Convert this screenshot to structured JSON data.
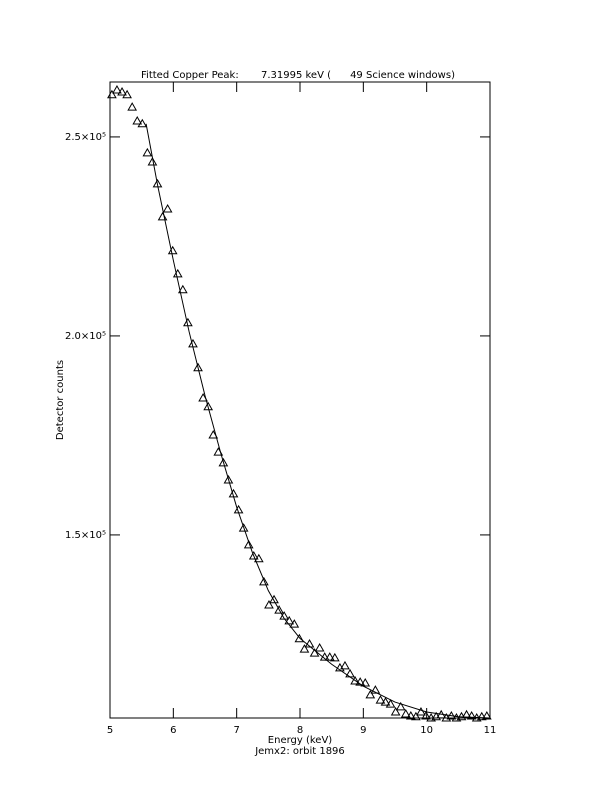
{
  "chart_data": {
    "type": "scatter",
    "title": "Fitted Copper Peak:       7.31995 keV (      49 Science windows)",
    "xlabel": "Energy (keV)",
    "subtitle": "Jemx2: orbit 1896",
    "ylabel": "Detector counts",
    "xlim": [
      5,
      11
    ],
    "xticks": [
      5,
      6,
      7,
      8,
      9,
      10,
      11
    ],
    "ylim": [
      104000,
      263800
    ],
    "yticks": [
      {
        "value": 150000,
        "label": "1.5×10⁵"
      },
      {
        "value": 200000,
        "label": "2.0×10⁵"
      },
      {
        "value": 250000,
        "label": "2.5×10⁵"
      }
    ],
    "series": [
      {
        "color": "#000000",
        "marker": "triangle",
        "x": [
          5.03,
          5.11,
          5.19,
          5.27,
          5.35,
          5.43,
          5.51,
          5.59,
          5.67,
          5.75,
          5.83,
          5.91,
          5.99,
          6.07,
          6.15,
          6.23,
          6.31,
          6.39,
          6.47,
          6.55,
          6.63,
          6.71,
          6.79,
          6.87,
          6.95,
          7.03,
          7.11,
          7.19,
          7.27,
          7.35,
          7.43,
          7.51,
          7.59,
          7.67,
          7.75,
          7.83,
          7.91,
          7.99,
          8.07,
          8.15,
          8.23,
          8.31,
          8.39,
          8.47,
          8.55,
          8.63,
          8.71,
          8.79,
          8.87,
          8.95,
          9.03,
          9.11,
          9.19,
          9.27,
          9.35,
          9.43,
          9.51,
          9.59,
          9.67,
          9.75,
          9.83,
          9.91,
          9.99,
          10.07,
          10.15,
          10.23,
          10.31,
          10.39,
          10.47,
          10.55,
          10.63,
          10.71,
          10.79,
          10.87,
          10.95
        ],
        "values": [
          260600,
          261800,
          261300,
          260600,
          257500,
          254000,
          253300,
          246000,
          243700,
          238200,
          229900,
          231900,
          221400,
          215600,
          211600,
          203300,
          198000,
          192000,
          184400,
          182200,
          175100,
          170800,
          168100,
          163800,
          160300,
          156300,
          151700,
          147500,
          144700,
          144000,
          138200,
          132400,
          133700,
          131100,
          129600,
          128400,
          127600,
          123900,
          121300,
          122600,
          120300,
          121600,
          119300,
          119300,
          119100,
          116600,
          117100,
          115100,
          113300,
          113000,
          112800,
          109800,
          111000,
          108500,
          108000,
          107500,
          105500,
          106800,
          105000,
          104500,
          104300,
          105500,
          104500,
          104000,
          104300,
          104800,
          104000,
          104500,
          104000,
          104300,
          104800,
          104500,
          104000,
          104300,
          104500
        ]
      },
      {
        "color": "#000000",
        "marker": "line",
        "x": [
          5.57,
          5.75,
          6.0,
          6.25,
          6.5,
          6.75,
          7.0,
          7.25,
          7.5,
          7.75,
          8.0,
          8.5,
          9.0,
          9.5,
          10.0,
          10.5,
          11.0
        ],
        "values": [
          253300,
          238000,
          219000,
          201000,
          185000,
          170500,
          157000,
          145500,
          136000,
          129000,
          124000,
          117500,
          112000,
          108000,
          105500,
          104300,
          104000
        ]
      }
    ]
  }
}
